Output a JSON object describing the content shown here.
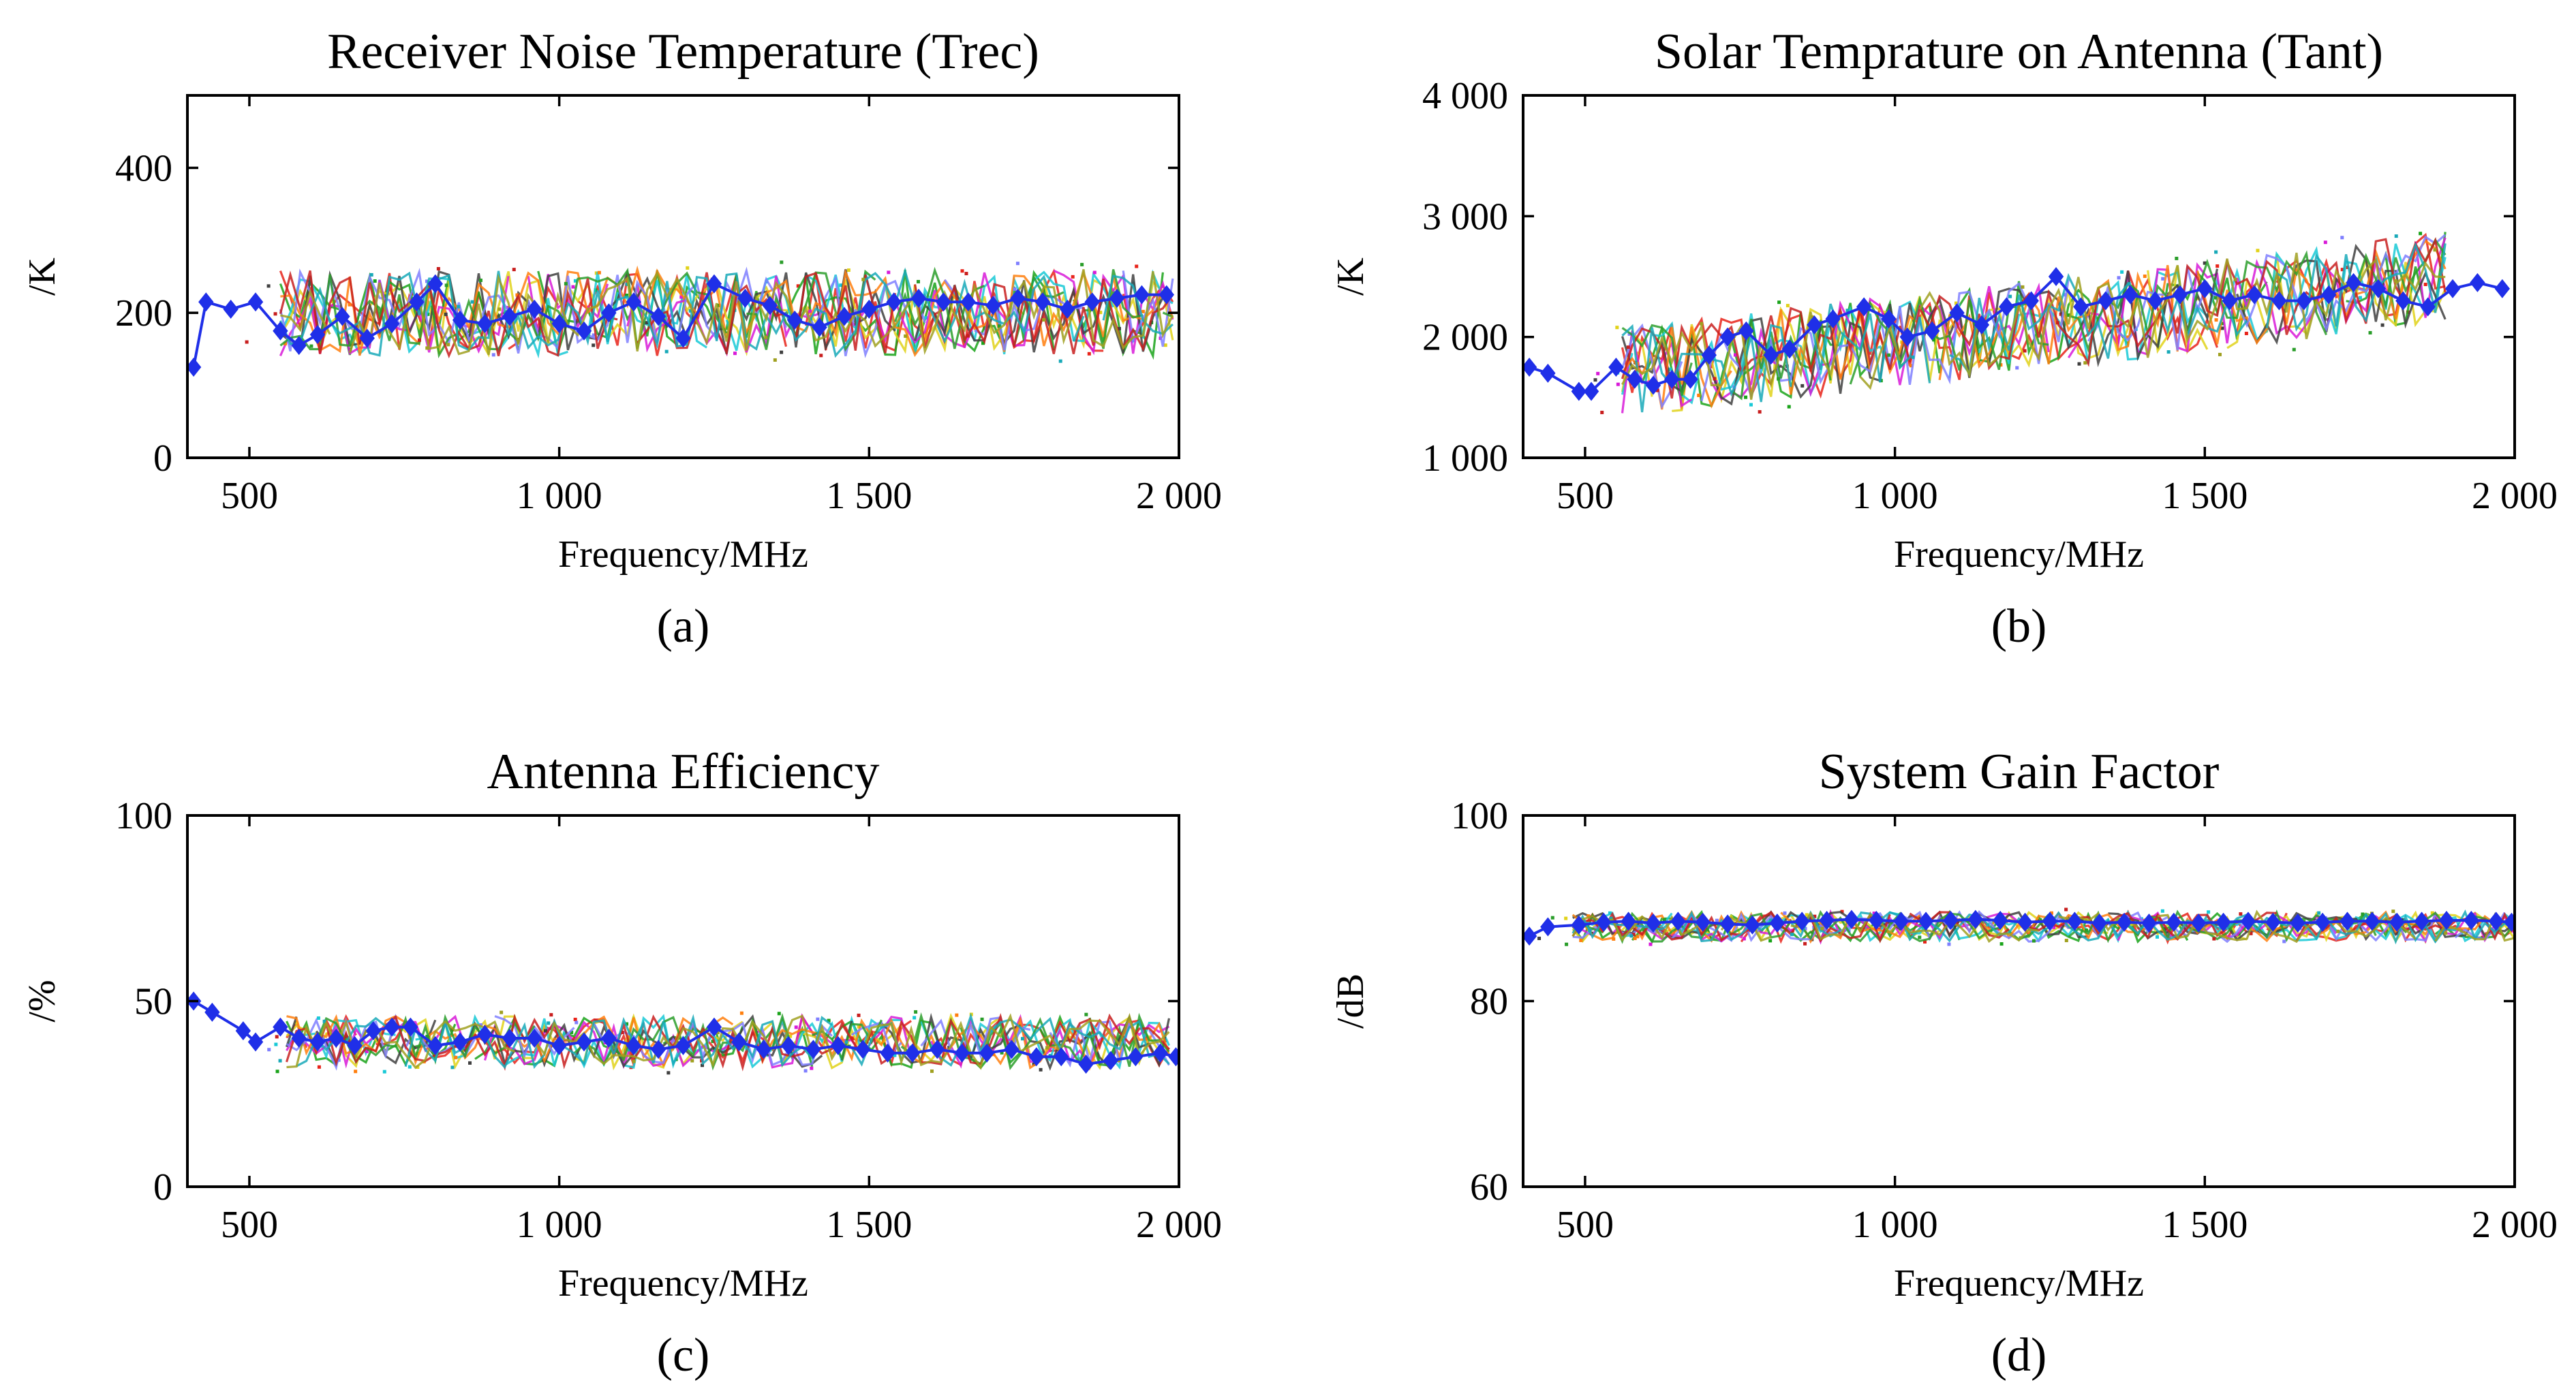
{
  "chart_data": [
    {
      "id": "a",
      "type": "line",
      "title": "Receiver Noise Temperature (Trec)",
      "caption": "(a)",
      "xlabel": "Frequency/MHz",
      "ylabel": "/K",
      "xlim": [
        400,
        2000
      ],
      "ylim": [
        0,
        500
      ],
      "xticks": [
        500,
        1000,
        1500,
        2000
      ],
      "xtick_labels": [
        "500",
        "1 000",
        "1 500",
        "2 000"
      ],
      "yticks": [
        0,
        200,
        400
      ],
      "ytick_labels": [
        "0",
        "200",
        "400"
      ],
      "background_series": {
        "count": 12,
        "base": 200,
        "spread": 60,
        "x_start": 550,
        "x_end": 2000
      },
      "mean_series": {
        "name": "mean",
        "color": "#1f2fe8",
        "points": [
          [
            410,
            125
          ],
          [
            430,
            215
          ],
          [
            470,
            205
          ],
          [
            510,
            215
          ],
          [
            550,
            175
          ],
          [
            580,
            155
          ],
          [
            610,
            170
          ],
          [
            650,
            195
          ],
          [
            690,
            165
          ],
          [
            730,
            185
          ],
          [
            770,
            215
          ],
          [
            800,
            240
          ],
          [
            840,
            190
          ],
          [
            880,
            185
          ],
          [
            920,
            195
          ],
          [
            960,
            205
          ],
          [
            1000,
            185
          ],
          [
            1040,
            175
          ],
          [
            1080,
            200
          ],
          [
            1120,
            215
          ],
          [
            1160,
            195
          ],
          [
            1200,
            165
          ],
          [
            1250,
            240
          ],
          [
            1300,
            220
          ],
          [
            1340,
            210
          ],
          [
            1380,
            190
          ],
          [
            1420,
            180
          ],
          [
            1460,
            195
          ],
          [
            1500,
            205
          ],
          [
            1540,
            215
          ],
          [
            1580,
            220
          ],
          [
            1620,
            215
          ],
          [
            1660,
            215
          ],
          [
            1700,
            210
          ],
          [
            1740,
            220
          ],
          [
            1780,
            215
          ],
          [
            1820,
            205
          ],
          [
            1860,
            215
          ],
          [
            1900,
            220
          ],
          [
            1940,
            225
          ],
          [
            1980,
            225
          ]
        ]
      }
    },
    {
      "id": "b",
      "type": "line",
      "title": "Solar Temprature on Antenna (Tant)",
      "caption": "(b)",
      "xlabel": "Frequency/MHz",
      "ylabel": "/K",
      "xlim": [
        400,
        2000
      ],
      "ylim": [
        1000,
        4000
      ],
      "xticks": [
        500,
        1000,
        1500,
        2000
      ],
      "xtick_labels": [
        "500",
        "1 000",
        "1 500",
        "2 000"
      ],
      "yticks": [
        1000,
        2000,
        3000,
        4000
      ],
      "ytick_labels": [
        "1 000",
        "2 000",
        "3 000",
        "4 000"
      ],
      "background_series": {
        "count": 12,
        "base_start": 1700,
        "base_end": 2500,
        "spread": 380,
        "x_start": 560,
        "x_end": 1900
      },
      "mean_series": {
        "name": "mean",
        "color": "#1f2fe8",
        "points": [
          [
            410,
            1750
          ],
          [
            440,
            1700
          ],
          [
            490,
            1550
          ],
          [
            510,
            1550
          ],
          [
            550,
            1750
          ],
          [
            580,
            1650
          ],
          [
            610,
            1600
          ],
          [
            640,
            1650
          ],
          [
            670,
            1650
          ],
          [
            700,
            1850
          ],
          [
            730,
            2000
          ],
          [
            760,
            2050
          ],
          [
            800,
            1850
          ],
          [
            830,
            1900
          ],
          [
            870,
            2100
          ],
          [
            900,
            2150
          ],
          [
            950,
            2250
          ],
          [
            990,
            2150
          ],
          [
            1020,
            2000
          ],
          [
            1060,
            2050
          ],
          [
            1100,
            2200
          ],
          [
            1140,
            2100
          ],
          [
            1180,
            2250
          ],
          [
            1220,
            2300
          ],
          [
            1260,
            2500
          ],
          [
            1300,
            2250
          ],
          [
            1340,
            2300
          ],
          [
            1380,
            2350
          ],
          [
            1420,
            2300
          ],
          [
            1460,
            2350
          ],
          [
            1500,
            2400
          ],
          [
            1540,
            2300
          ],
          [
            1580,
            2350
          ],
          [
            1620,
            2300
          ],
          [
            1660,
            2300
          ],
          [
            1700,
            2350
          ],
          [
            1740,
            2450
          ],
          [
            1780,
            2400
          ],
          [
            1820,
            2300
          ],
          [
            1860,
            2250
          ],
          [
            1900,
            2400
          ],
          [
            1940,
            2450
          ],
          [
            1980,
            2400
          ]
        ]
      }
    },
    {
      "id": "c",
      "type": "line",
      "title": "Antenna Efficiency",
      "caption": "(c)",
      "xlabel": "Frequency/MHz",
      "ylabel": "/%",
      "xlim": [
        400,
        2000
      ],
      "ylim": [
        0,
        100
      ],
      "xticks": [
        500,
        1000,
        1500,
        2000
      ],
      "xtick_labels": [
        "500",
        "1 000",
        "1 500",
        "2 000"
      ],
      "yticks": [
        0,
        50,
        100
      ],
      "ytick_labels": [
        "0",
        "50",
        "100"
      ],
      "background_series": {
        "count": 12,
        "base": 39,
        "spread": 7,
        "x_start": 560,
        "x_end": 1990
      },
      "mean_series": {
        "name": "mean",
        "color": "#1f2fe8",
        "points": [
          [
            410,
            50
          ],
          [
            440,
            47
          ],
          [
            490,
            42
          ],
          [
            510,
            39
          ],
          [
            550,
            43
          ],
          [
            580,
            40
          ],
          [
            610,
            39
          ],
          [
            640,
            40
          ],
          [
            670,
            38
          ],
          [
            700,
            42
          ],
          [
            730,
            43
          ],
          [
            760,
            43
          ],
          [
            800,
            38
          ],
          [
            840,
            39
          ],
          [
            880,
            41
          ],
          [
            920,
            40
          ],
          [
            960,
            40
          ],
          [
            1000,
            38
          ],
          [
            1040,
            39
          ],
          [
            1080,
            40
          ],
          [
            1120,
            38
          ],
          [
            1160,
            37
          ],
          [
            1200,
            38
          ],
          [
            1250,
            43
          ],
          [
            1290,
            39
          ],
          [
            1330,
            37
          ],
          [
            1370,
            38
          ],
          [
            1410,
            37
          ],
          [
            1450,
            38
          ],
          [
            1490,
            37
          ],
          [
            1530,
            36
          ],
          [
            1570,
            36
          ],
          [
            1610,
            37
          ],
          [
            1650,
            36
          ],
          [
            1690,
            36
          ],
          [
            1730,
            37
          ],
          [
            1770,
            35
          ],
          [
            1810,
            35
          ],
          [
            1850,
            33
          ],
          [
            1890,
            34
          ],
          [
            1930,
            35
          ],
          [
            1970,
            36
          ],
          [
            1995,
            35
          ]
        ]
      }
    },
    {
      "id": "d",
      "type": "line",
      "title": "System Gain Factor",
      "caption": "(d)",
      "xlabel": "Frequency/MHz",
      "ylabel": "/dB",
      "xlim": [
        400,
        2000
      ],
      "ylim": [
        60,
        100
      ],
      "xticks": [
        500,
        1000,
        1500,
        2000
      ],
      "xtick_labels": [
        "500",
        "1 000",
        "1 500",
        "2 000"
      ],
      "yticks": [
        60,
        80,
        100
      ],
      "ytick_labels": [
        "60",
        "80",
        "100"
      ],
      "background_series": {
        "count": 12,
        "base": 88,
        "spread": 1.6,
        "x_start": 480,
        "x_end": 2000
      },
      "mean_series": {
        "name": "mean",
        "color": "#1f2fe8",
        "points": [
          [
            410,
            87
          ],
          [
            440,
            88
          ],
          [
            490,
            88.2
          ],
          [
            530,
            88.5
          ],
          [
            570,
            88.6
          ],
          [
            610,
            88.4
          ],
          [
            650,
            88.6
          ],
          [
            690,
            88.5
          ],
          [
            730,
            88.3
          ],
          [
            770,
            88.2
          ],
          [
            810,
            88.4
          ],
          [
            850,
            88.6
          ],
          [
            890,
            88.7
          ],
          [
            930,
            88.8
          ],
          [
            970,
            88.7
          ],
          [
            1010,
            88.6
          ],
          [
            1050,
            88.6
          ],
          [
            1090,
            88.7
          ],
          [
            1130,
            88.8
          ],
          [
            1170,
            88.7
          ],
          [
            1210,
            88.5
          ],
          [
            1250,
            88.6
          ],
          [
            1290,
            88.6
          ],
          [
            1330,
            88.4
          ],
          [
            1370,
            88.5
          ],
          [
            1410,
            88.4
          ],
          [
            1450,
            88.5
          ],
          [
            1490,
            88.4
          ],
          [
            1530,
            88.5
          ],
          [
            1570,
            88.6
          ],
          [
            1610,
            88.5
          ],
          [
            1650,
            88.4
          ],
          [
            1690,
            88.5
          ],
          [
            1730,
            88.6
          ],
          [
            1770,
            88.6
          ],
          [
            1810,
            88.5
          ],
          [
            1850,
            88.6
          ],
          [
            1890,
            88.7
          ],
          [
            1930,
            88.7
          ],
          [
            1970,
            88.6
          ],
          [
            1995,
            88.5
          ]
        ]
      }
    }
  ],
  "palette": [
    "#e8231a",
    "#1aa31a",
    "#e1d21a",
    "#18c9d6",
    "#d81ad8",
    "#404040",
    "#ff7f0e",
    "#7f7fff",
    "#2a9d2a",
    "#c81e1e",
    "#18a9b8",
    "#a0a020"
  ]
}
